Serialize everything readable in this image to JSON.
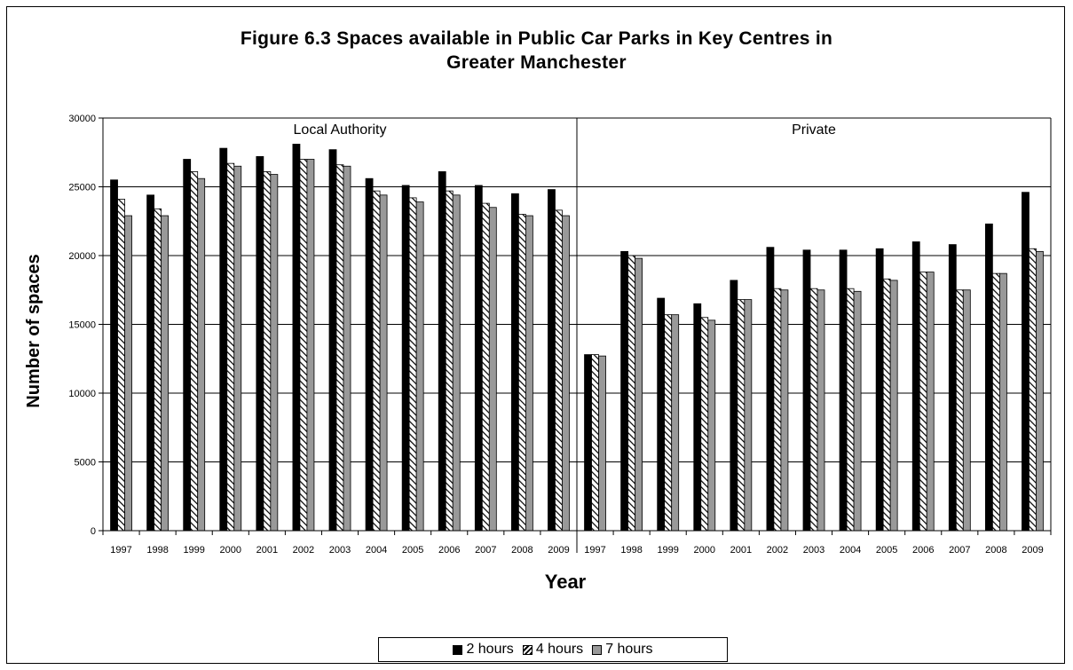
{
  "chart_data": {
    "type": "bar",
    "title": "Figure 6.3 Spaces available in Public Car Parks in Key Centres in Greater Manchester",
    "title_lines": [
      "Figure 6.3 Spaces available in Public Car Parks in Key Centres in",
      "Greater Manchester"
    ],
    "xlabel": "Year",
    "ylabel": "Number of spaces",
    "ylim": [
      0,
      30000
    ],
    "yticks": [
      0,
      5000,
      10000,
      15000,
      20000,
      25000,
      30000
    ],
    "grid": true,
    "legend_position": "bottom",
    "groups": [
      {
        "name": "Local Authority",
        "categories": [
          "1997",
          "1998",
          "1999",
          "2000",
          "2001",
          "2002",
          "2003",
          "2004",
          "2005",
          "2006",
          "2007",
          "2008",
          "2009"
        ]
      },
      {
        "name": "Private",
        "categories": [
          "1997",
          "1998",
          "1999",
          "2000",
          "2001",
          "2002",
          "2003",
          "2004",
          "2005",
          "2006",
          "2007",
          "2008",
          "2009"
        ]
      }
    ],
    "series": [
      {
        "name": "2 hours",
        "color": "#000000",
        "pattern": "solid",
        "values": [
          25500,
          24400,
          27000,
          27800,
          27200,
          28100,
          27700,
          25600,
          25100,
          26100,
          25100,
          24500,
          24800,
          12800,
          20300,
          16900,
          16500,
          18200,
          20600,
          20400,
          20400,
          20500,
          21000,
          20800,
          22300,
          24600
        ]
      },
      {
        "name": "4 hours",
        "color": "#ffffff",
        "pattern": "hatch",
        "values": [
          24100,
          23400,
          26100,
          26700,
          26100,
          27000,
          26600,
          24700,
          24200,
          24700,
          23800,
          23000,
          23300,
          12800,
          20000,
          15700,
          15500,
          16800,
          17600,
          17600,
          17600,
          18300,
          18800,
          17500,
          18700,
          20500
        ]
      },
      {
        "name": "7 hours",
        "color": "#999999",
        "pattern": "solid",
        "values": [
          22900,
          22900,
          25600,
          26500,
          25900,
          27000,
          26500,
          24400,
          23900,
          24400,
          23500,
          22900,
          22900,
          12700,
          19800,
          15700,
          15300,
          16800,
          17500,
          17500,
          17400,
          18200,
          18800,
          17500,
          18700,
          20300
        ]
      }
    ]
  }
}
